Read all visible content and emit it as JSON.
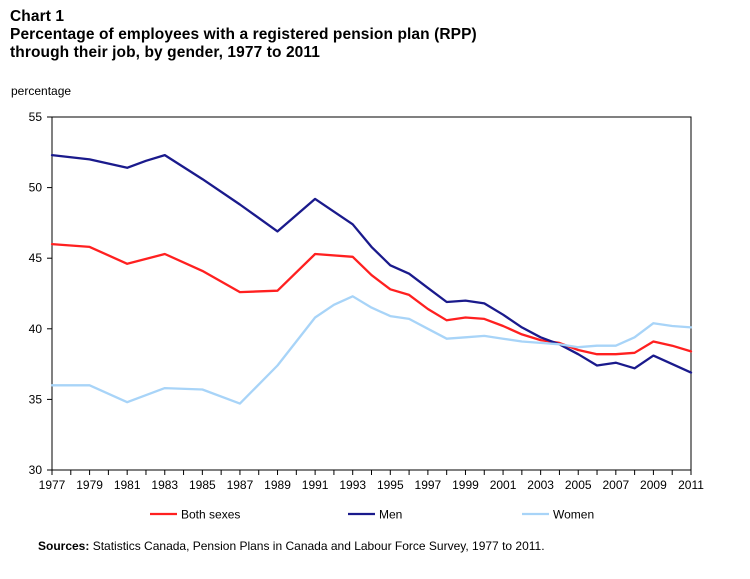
{
  "header": {
    "chart_number": "Chart 1",
    "title_line1": "Percentage of employees with a registered pension plan (RPP)",
    "title_line2": "through their job, by gender, 1977 to 2011"
  },
  "source": {
    "label": "Sources:",
    "text": "Statistics Canada, Pension Plans in Canada and Labour Force Survey, 1977 to 2011."
  },
  "colors": {
    "both_sexes": "#ff2020",
    "men": "#1a1a8c",
    "women": "#a8d4f8",
    "axis": "#000000"
  },
  "chart_data": {
    "type": "line",
    "title": "Percentage of employees with a registered pension plan (RPP) through their job, by gender, 1977 to 2011",
    "xlabel": "",
    "ylabel": "percentage",
    "ylim": [
      30,
      55
    ],
    "yticks": [
      30,
      35,
      40,
      45,
      50,
      55
    ],
    "xlim": [
      1977,
      2011
    ],
    "xticks": [
      1977,
      1979,
      1981,
      1983,
      1985,
      1987,
      1989,
      1991,
      1993,
      1995,
      1997,
      1999,
      2001,
      2003,
      2005,
      2007,
      2009,
      2011
    ],
    "grid": false,
    "legend": "bottom",
    "series": [
      {
        "name": "Both sexes",
        "color": "#ff2020",
        "points": [
          [
            1977,
            46.0
          ],
          [
            1979,
            45.8
          ],
          [
            1981,
            44.6
          ],
          [
            1983,
            45.3
          ],
          [
            1985,
            44.1
          ],
          [
            1987,
            42.6
          ],
          [
            1989,
            42.7
          ],
          [
            1991,
            45.3
          ],
          [
            1993,
            45.1
          ],
          [
            1994,
            43.8
          ],
          [
            1995,
            42.8
          ],
          [
            1996,
            42.4
          ],
          [
            1997,
            41.4
          ],
          [
            1998,
            40.6
          ],
          [
            1999,
            40.8
          ],
          [
            2000,
            40.7
          ],
          [
            2001,
            40.2
          ],
          [
            2002,
            39.6
          ],
          [
            2003,
            39.2
          ],
          [
            2004,
            39.0
          ],
          [
            2005,
            38.5
          ],
          [
            2006,
            38.2
          ],
          [
            2007,
            38.2
          ],
          [
            2008,
            38.3
          ],
          [
            2009,
            39.1
          ],
          [
            2010,
            38.8
          ],
          [
            2011,
            38.4
          ]
        ]
      },
      {
        "name": "Men",
        "color": "#1a1a8c",
        "points": [
          [
            1977,
            52.3
          ],
          [
            1979,
            52.0
          ],
          [
            1981,
            51.4
          ],
          [
            1982,
            51.9
          ],
          [
            1983,
            52.3
          ],
          [
            1985,
            50.6
          ],
          [
            1987,
            48.8
          ],
          [
            1989,
            46.9
          ],
          [
            1991,
            49.2
          ],
          [
            1993,
            47.4
          ],
          [
            1994,
            45.8
          ],
          [
            1995,
            44.5
          ],
          [
            1996,
            43.9
          ],
          [
            1997,
            42.9
          ],
          [
            1998,
            41.9
          ],
          [
            1999,
            42.0
          ],
          [
            2000,
            41.8
          ],
          [
            2001,
            41.0
          ],
          [
            2002,
            40.1
          ],
          [
            2003,
            39.4
          ],
          [
            2004,
            38.9
          ],
          [
            2005,
            38.2
          ],
          [
            2006,
            37.4
          ],
          [
            2007,
            37.6
          ],
          [
            2008,
            37.2
          ],
          [
            2009,
            38.1
          ],
          [
            2010,
            37.5
          ],
          [
            2011,
            36.9
          ]
        ]
      },
      {
        "name": "Women",
        "color": "#a8d4f8",
        "points": [
          [
            1977,
            36.0
          ],
          [
            1979,
            36.0
          ],
          [
            1981,
            34.8
          ],
          [
            1983,
            35.8
          ],
          [
            1985,
            35.7
          ],
          [
            1987,
            34.7
          ],
          [
            1989,
            37.4
          ],
          [
            1991,
            40.8
          ],
          [
            1992,
            41.7
          ],
          [
            1993,
            42.3
          ],
          [
            1994,
            41.5
          ],
          [
            1995,
            40.9
          ],
          [
            1996,
            40.7
          ],
          [
            1997,
            40.0
          ],
          [
            1998,
            39.3
          ],
          [
            1999,
            39.4
          ],
          [
            2000,
            39.5
          ],
          [
            2001,
            39.3
          ],
          [
            2002,
            39.1
          ],
          [
            2003,
            39.0
          ],
          [
            2004,
            38.9
          ],
          [
            2005,
            38.7
          ],
          [
            2006,
            38.8
          ],
          [
            2007,
            38.8
          ],
          [
            2008,
            39.4
          ],
          [
            2009,
            40.4
          ],
          [
            2010,
            40.2
          ],
          [
            2011,
            40.1
          ]
        ]
      }
    ]
  }
}
